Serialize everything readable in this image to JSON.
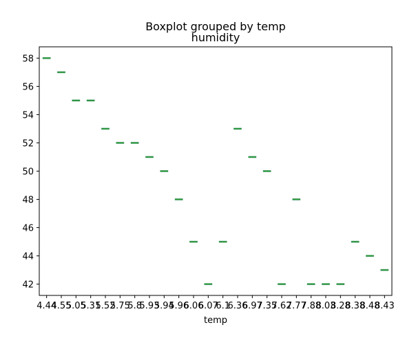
{
  "chart_data": {
    "type": "boxplot",
    "suptitle": "Boxplot grouped by temp",
    "title": "humidity",
    "xlabel": "temp",
    "ylabel": "",
    "ylim": [
      41.2,
      58.8
    ],
    "yticks": [
      42,
      44,
      46,
      48,
      50,
      52,
      54,
      56,
      58
    ],
    "categories": [
      "4.44",
      "4.55",
      "5.05",
      "5.31",
      "5.52",
      "5.75",
      "5.8",
      "5.93",
      "5.94",
      "5.96",
      "6.06",
      "6.07",
      "6.1",
      "6.36",
      "6.97",
      "7.35",
      "7.62",
      "7.77",
      "7.88",
      "8.03",
      "8.28",
      "8.38",
      "8.48",
      "8.43"
    ],
    "values": [
      58,
      57,
      55,
      55,
      53,
      52,
      52,
      51,
      50,
      48,
      45,
      42,
      45,
      53,
      51,
      50,
      42,
      48,
      42,
      42,
      42,
      45,
      44,
      43
    ],
    "box_color": "#2e8b57",
    "median_color": "#2ca02c",
    "grid": false
  }
}
